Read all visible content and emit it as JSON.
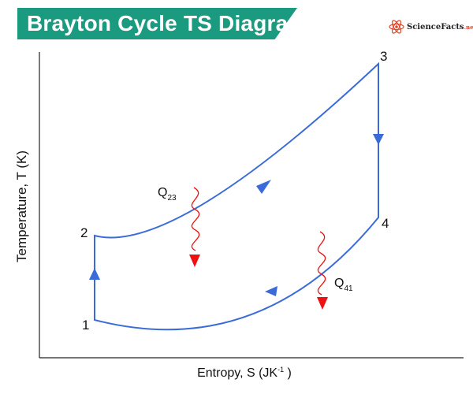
{
  "title": "Brayton Cycle TS Diagram",
  "logo": {
    "name": "ScienceFacts",
    "tld": ".net"
  },
  "axes": {
    "x_label": {
      "text": "Entropy, S (JK",
      "sup": "-1",
      "end": " )"
    },
    "y_label": "Temperature, T (K)"
  },
  "points": {
    "p1": "1",
    "p2": "2",
    "p3": "3",
    "p4": "4"
  },
  "heat_labels": {
    "q23": {
      "main": "Q",
      "sub": "23"
    },
    "q41": {
      "main": "Q",
      "sub": "41"
    }
  },
  "colors": {
    "cycle": "#3a6bd8",
    "heat": "#ee1111",
    "banner": "#1a9a7e",
    "axis": "#222222"
  },
  "icons": [
    "atom-logo-icon",
    "arrow-up-icon",
    "arrow-right-icon",
    "arrow-down-icon",
    "arrow-left-icon",
    "heat-wave-icon",
    "heat-arrow-icon"
  ]
}
